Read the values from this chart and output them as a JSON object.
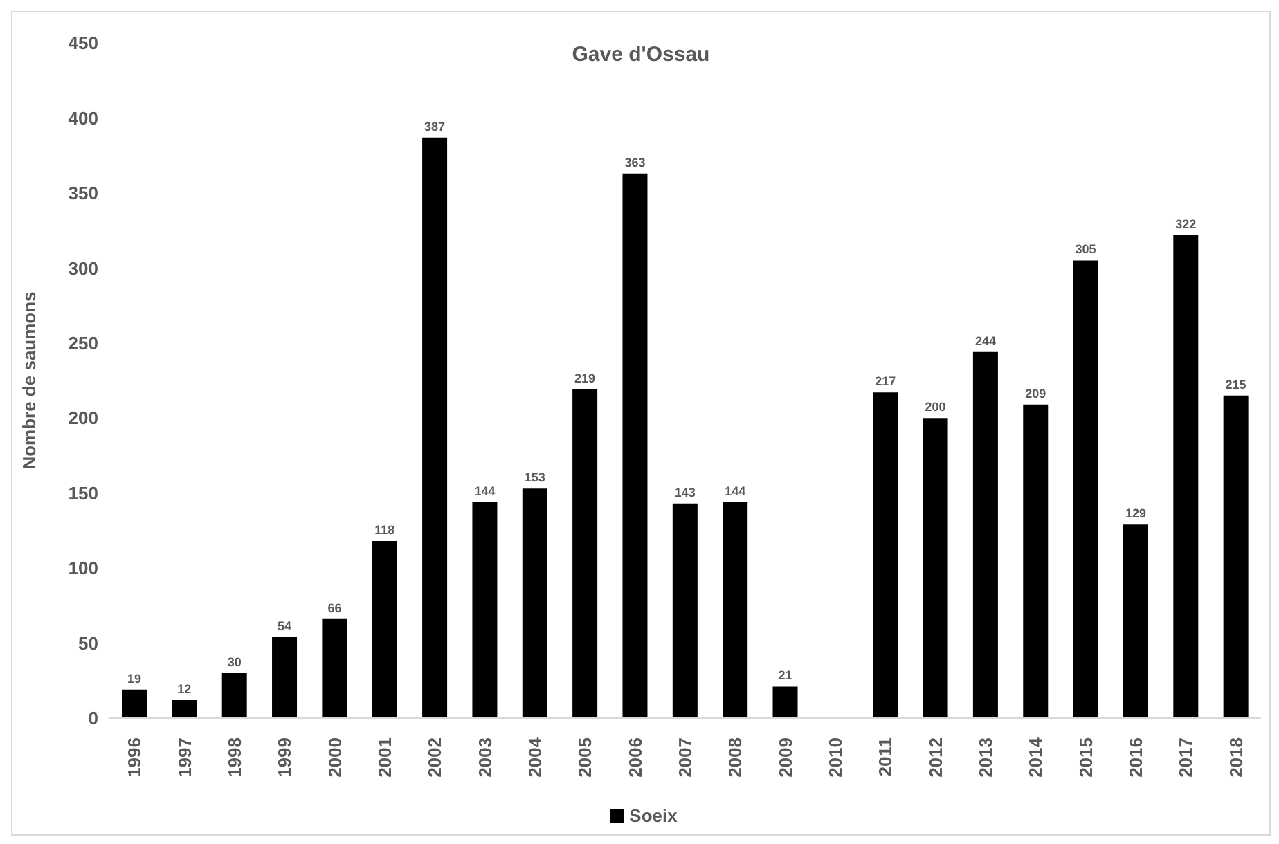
{
  "chart_data": {
    "type": "bar",
    "title": "Gave d'Ossau",
    "ylabel": "Nombre de saumons",
    "categories": [
      "1996",
      "1997",
      "1998",
      "1999",
      "2000",
      "2001",
      "2002",
      "2003",
      "2004",
      "2005",
      "2006",
      "2007",
      "2008",
      "2009",
      "2010",
      "2011",
      "2012",
      "2013",
      "2014",
      "2015",
      "2016",
      "2017",
      "2018"
    ],
    "series": [
      {
        "name": "Soeix",
        "color": "#000000",
        "values": [
          19,
          12,
          30,
          54,
          66,
          118,
          387,
          144,
          153,
          219,
          363,
          143,
          144,
          21,
          null,
          217,
          200,
          244,
          209,
          305,
          129,
          322,
          215
        ]
      }
    ],
    "ylim": [
      0,
      450
    ],
    "yticks": [
      0,
      50,
      100,
      150,
      200,
      250,
      300,
      350,
      400,
      450
    ],
    "grid": false,
    "legend": "bottom",
    "data_labels": true
  }
}
